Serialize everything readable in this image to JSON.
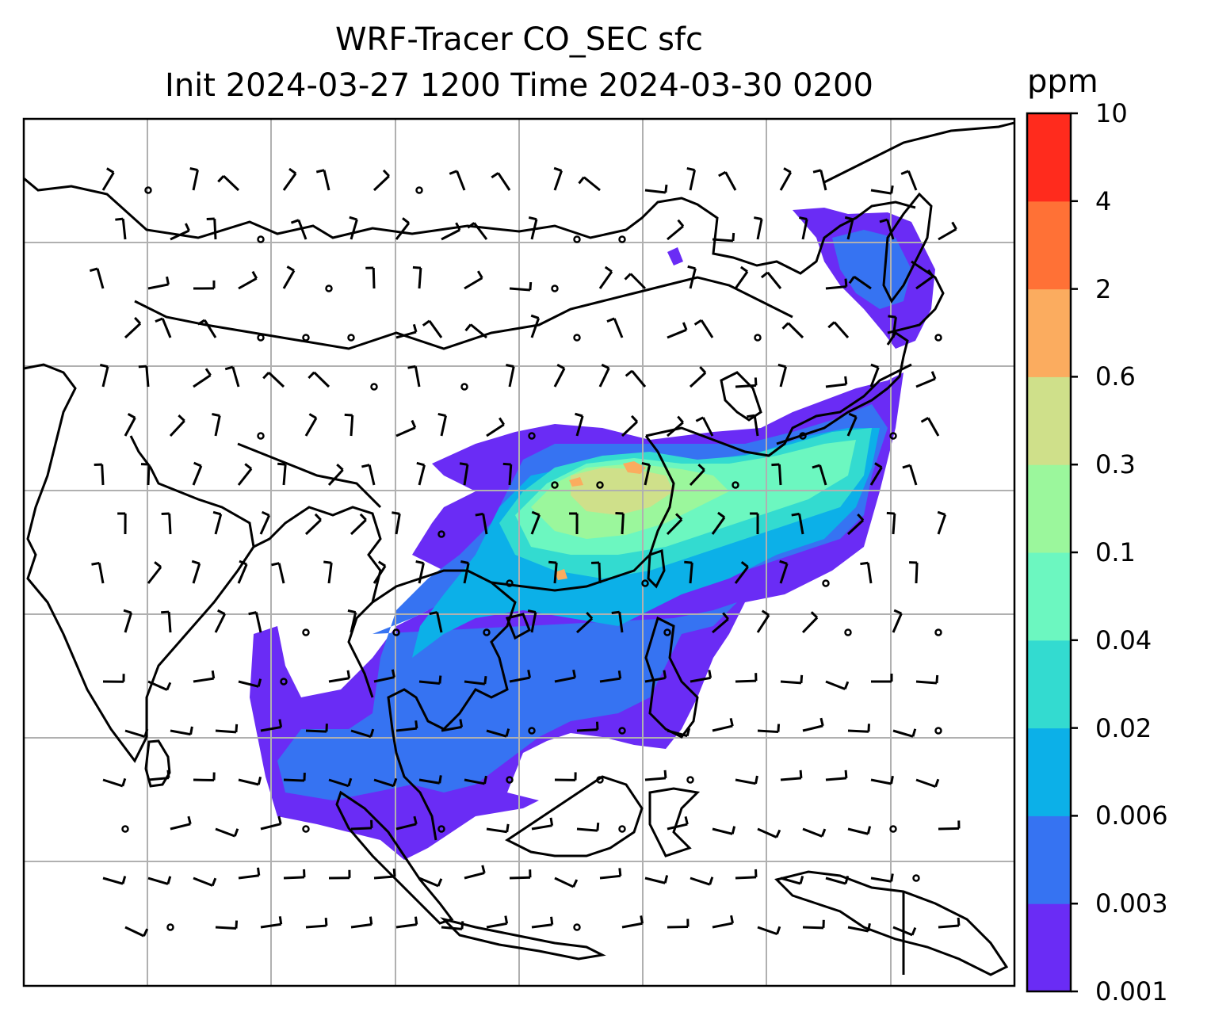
{
  "title_line1": "WRF-Tracer CO_SEC sfc",
  "title_line2": "Init 2024-03-27 1200 Time 2024-03-30 0200",
  "colorbar": {
    "unit": "ppm",
    "levels": [
      "0.001",
      "0.003",
      "0.006",
      "0.02",
      "0.04",
      "0.1",
      "0.3",
      "0.6",
      "2",
      "4",
      "10"
    ],
    "colors": [
      "#6a2cf5",
      "#3673f2",
      "#0cb0e8",
      "#33dbd0",
      "#6cf7c0",
      "#9bf79c",
      "#cfe08a",
      "#fbac5f",
      "#ff7136",
      "#ff2b1d"
    ]
  },
  "map_colors": {
    "coast": "#000000",
    "grid": "#b0b0b0",
    "barb": "#000000"
  }
}
